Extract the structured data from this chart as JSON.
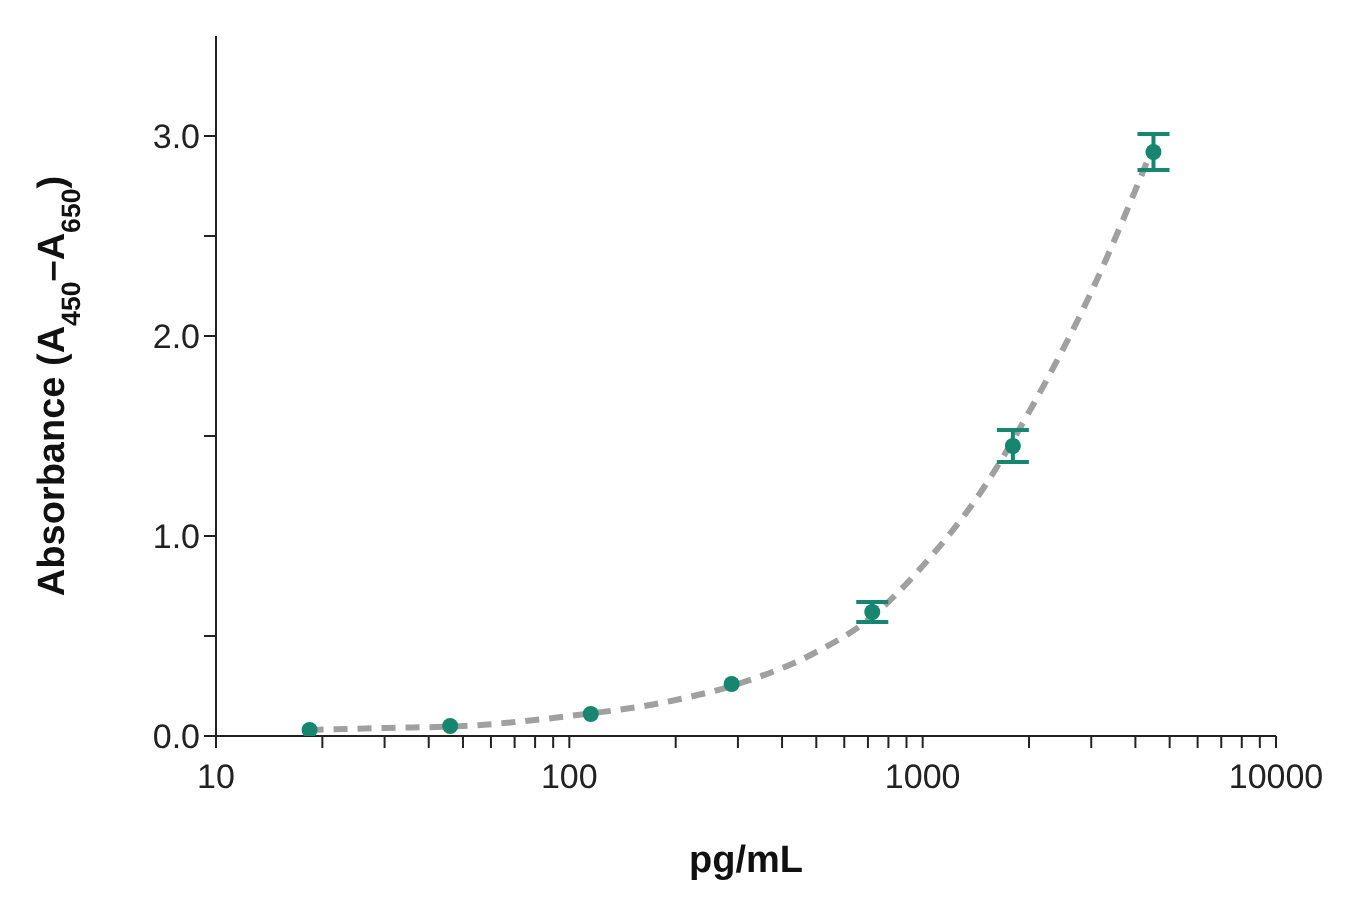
{
  "chart_data": {
    "type": "scatter",
    "xlabel": "pg/mL",
    "ylabel": "Absorbance (A$_{450}$–A$_{650}$)",
    "log": "x",
    "xlim": [
      10,
      10000
    ],
    "xticks": [
      10,
      {
        "value": 20,
        "label": null
      },
      {
        "value": 30,
        "label": null
      },
      {
        "value": 40,
        "label": null
      },
      {
        "value": 50,
        "label": null
      },
      {
        "value": 60,
        "label": null
      },
      {
        "value": 70,
        "label": null
      },
      {
        "value": 80,
        "label": null
      },
      {
        "value": 90,
        "label": null
      },
      100,
      {
        "value": 200,
        "label": null
      },
      {
        "value": 300,
        "label": null
      },
      {
        "value": 400,
        "label": null
      },
      {
        "value": 500,
        "label": null
      },
      {
        "value": 600,
        "label": null
      },
      {
        "value": 700,
        "label": null
      },
      {
        "value": 800,
        "label": null
      },
      {
        "value": 900,
        "label": null
      },
      1000,
      {
        "value": 2000,
        "label": null
      },
      {
        "value": 3000,
        "label": null
      },
      {
        "value": 4000,
        "label": null
      },
      {
        "value": 5000,
        "label": null
      },
      {
        "value": 6000,
        "label": null
      },
      {
        "value": 7000,
        "label": null
      },
      {
        "value": 8000,
        "label": null
      },
      {
        "value": 9000,
        "label": null
      },
      10000
    ],
    "ylim": [
      0,
      3.5
    ],
    "yticks": [
      {
        "value": 0,
        "label": "0.0"
      },
      {
        "value": 0.5,
        "label": null
      },
      {
        "value": 1,
        "label": "1.0"
      },
      {
        "value": 1.5,
        "label": null
      },
      {
        "value": 2,
        "label": "2.0"
      },
      {
        "value": 2.5,
        "label": null
      },
      {
        "value": 3,
        "label": "3.0"
      }
    ],
    "grid": false,
    "legend": false,
    "marker": "circle",
    "series": [
      {
        "type": "line",
        "color": "#a0a0a0",
        "line_style": "dashed",
        "marker": "none",
        "x": [
          18.4,
          30,
          50,
          100,
          200,
          300,
          500,
          700,
          1000,
          1500,
          2000,
          3000,
          4500
        ],
        "values": [
          0.03,
          0.04,
          0.05,
          0.1,
          0.18,
          0.26,
          0.42,
          0.58,
          0.85,
          1.25,
          1.62,
          2.22,
          2.95
        ]
      },
      {
        "type": "scatter",
        "color": "#16866f",
        "x": [
          18.4,
          46,
          115,
          288,
          720,
          1800,
          4500
        ],
        "values": [
          0.03,
          0.05,
          0.11,
          0.26,
          0.62,
          1.45,
          2.92
        ],
        "errors": [
          null,
          null,
          null,
          null,
          0.05,
          0.08,
          0.09
        ]
      }
    ]
  }
}
